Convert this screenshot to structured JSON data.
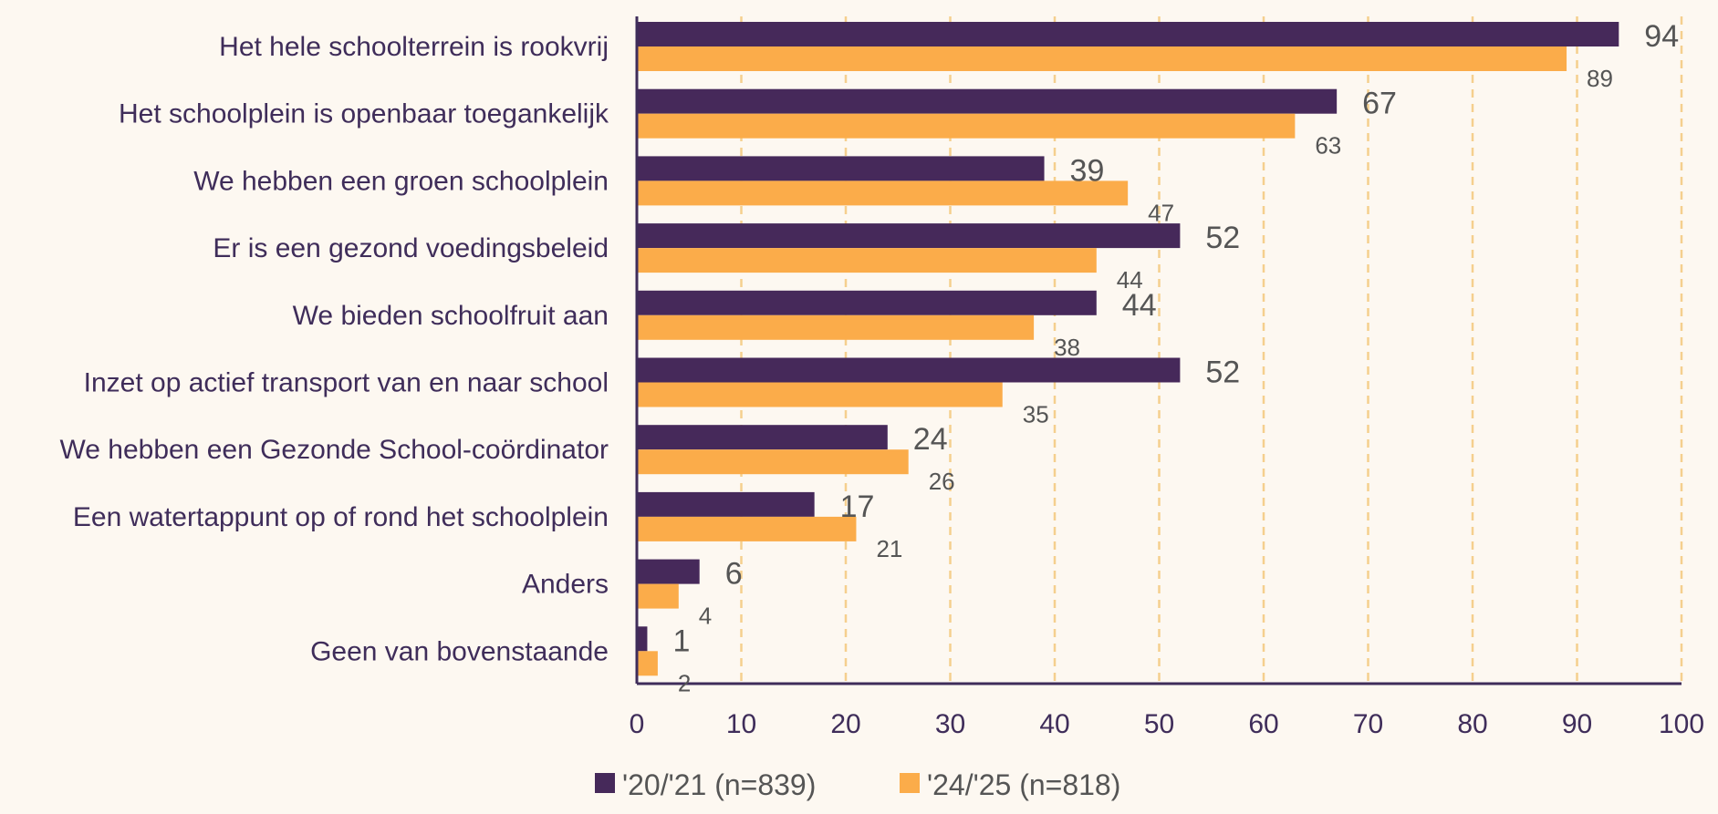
{
  "chart_data": {
    "type": "bar",
    "orientation": "horizontal",
    "categories": [
      "Het hele schoolterrein is rookvrij",
      "Het schoolplein is openbaar toegankelijk",
      "We hebben een groen schoolplein",
      "Er is een gezond voedingsbeleid",
      "We bieden schoolfruit aan",
      "Inzet op actief transport van en naar school",
      "We hebben een Gezonde School-coördinator",
      "Een watertappunt op of rond het schoolplein",
      "Anders",
      "Geen van bovenstaande"
    ],
    "series": [
      {
        "name": "'20/'21 (n=839)",
        "color": "#46295a",
        "values": [
          94,
          67,
          39,
          52,
          44,
          52,
          24,
          17,
          6,
          1
        ]
      },
      {
        "name": "'24/'25 (n=818)",
        "color": "#fbac4a",
        "values": [
          89,
          63,
          47,
          44,
          38,
          35,
          26,
          21,
          4,
          2
        ]
      }
    ],
    "xlim": [
      0,
      100
    ],
    "xticks": [
      0,
      10,
      20,
      30,
      40,
      50,
      60,
      70,
      80,
      90,
      100
    ],
    "xlabel": "",
    "ylabel": "",
    "title": "",
    "grid": "vertical dashed",
    "legend": "bottom-center",
    "colors": {
      "background": "#fdf8f1",
      "grid": "#f5cf8e",
      "axis": "#3f2d5a",
      "label": "#3f2d5a",
      "value": "#555555"
    }
  }
}
